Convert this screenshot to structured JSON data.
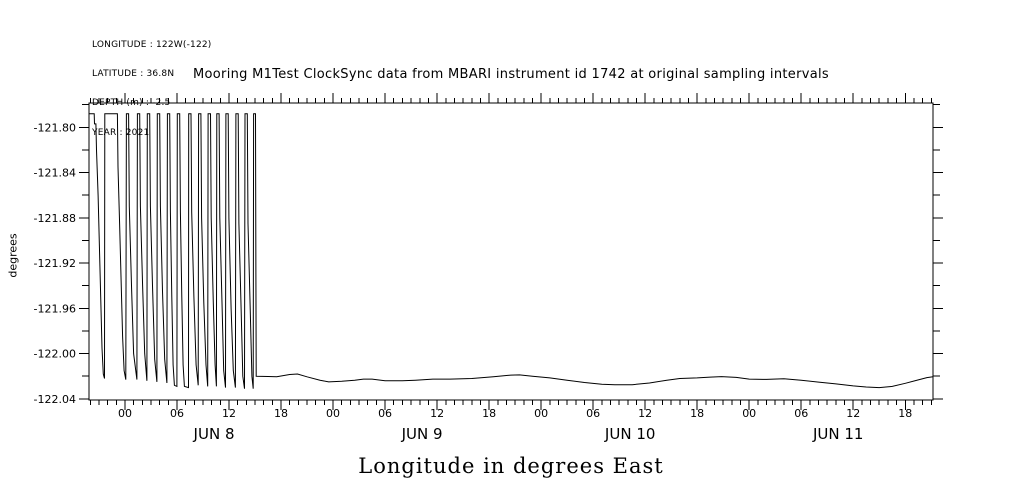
{
  "window": {
    "background": "#ffffff",
    "foreground": "#000000"
  },
  "header": {
    "info_lines": [
      "LONGITUDE : 122W(-122)",
      "LATITUDE : 36.8N",
      "DEPTH (m) : -2.5",
      "YEAR : 2021"
    ]
  },
  "chart_data": {
    "type": "line",
    "title": "Mooring M1Test ClockSync data from MBARI instrument id 1742 at original sampling intervals",
    "xlabel": "Longitude in degrees East",
    "ylabel": "degrees",
    "grid": false,
    "legend": null,
    "line_color": "#000000",
    "x_axis": {
      "unit": "hours since 2021-06-08 00:00",
      "range": [
        -4.15,
        93.2
      ],
      "minor_tick_interval_hours": 1,
      "major_ticks": [
        {
          "hour": 0,
          "label": "00"
        },
        {
          "hour": 6,
          "label": "06"
        },
        {
          "hour": 12,
          "label": "12"
        },
        {
          "hour": 18,
          "label": "18"
        },
        {
          "hour": 24,
          "label": "00"
        },
        {
          "hour": 30,
          "label": "06"
        },
        {
          "hour": 36,
          "label": "12"
        },
        {
          "hour": 42,
          "label": "18"
        },
        {
          "hour": 48,
          "label": "00"
        },
        {
          "hour": 54,
          "label": "06"
        },
        {
          "hour": 60,
          "label": "12"
        },
        {
          "hour": 66,
          "label": "18"
        },
        {
          "hour": 72,
          "label": "00"
        },
        {
          "hour": 78,
          "label": "06"
        },
        {
          "hour": 84,
          "label": "12"
        },
        {
          "hour": 90,
          "label": "18"
        }
      ],
      "day_labels": [
        {
          "hour": 12,
          "label": "JUN  8"
        },
        {
          "hour": 36,
          "label": "JUN  9"
        },
        {
          "hour": 60,
          "label": "JUN 10"
        },
        {
          "hour": 84,
          "label": "JUN 11"
        }
      ]
    },
    "y_axis": {
      "range": [
        -122.041,
        -121.7785
      ],
      "minor_tick_interval": 0.02,
      "major_ticks": [
        {
          "value": -121.8,
          "label": "-121.80"
        },
        {
          "value": -121.84,
          "label": "-121.84"
        },
        {
          "value": -121.88,
          "label": "-121.88"
        },
        {
          "value": -121.92,
          "label": "-121.92"
        },
        {
          "value": -121.96,
          "label": "-121.96"
        },
        {
          "value": -122.0,
          "label": "-122.00"
        },
        {
          "value": -122.04,
          "label": "-122.04"
        }
      ]
    },
    "series": [
      {
        "name": "longitude",
        "color": "#000000",
        "points": [
          [
            -4.15,
            -121.788
          ],
          [
            -3.55,
            -121.788
          ],
          [
            -3.52,
            -121.797
          ],
          [
            -3.35,
            -121.797
          ],
          [
            -3.28,
            -121.82
          ],
          [
            -3.1,
            -121.86
          ],
          [
            -2.95,
            -121.905
          ],
          [
            -2.8,
            -121.95
          ],
          [
            -2.65,
            -121.995
          ],
          [
            -2.5,
            -122.018
          ],
          [
            -2.36,
            -122.022
          ],
          [
            -2.33,
            -121.788
          ],
          [
            -0.88,
            -121.788
          ],
          [
            -0.8,
            -121.835
          ],
          [
            -0.62,
            -121.885
          ],
          [
            -0.45,
            -121.935
          ],
          [
            -0.28,
            -121.985
          ],
          [
            -0.1,
            -122.015
          ],
          [
            0.1,
            -122.023
          ],
          [
            0.16,
            -121.788
          ],
          [
            0.42,
            -121.788
          ],
          [
            0.5,
            -121.87
          ],
          [
            0.75,
            -121.94
          ],
          [
            1.0,
            -122.0
          ],
          [
            1.38,
            -122.023
          ],
          [
            1.43,
            -121.788
          ],
          [
            1.7,
            -121.788
          ],
          [
            1.78,
            -121.87
          ],
          [
            2.03,
            -121.94
          ],
          [
            2.28,
            -122.0
          ],
          [
            2.53,
            -122.024
          ],
          [
            2.58,
            -121.788
          ],
          [
            2.85,
            -121.788
          ],
          [
            2.93,
            -121.87
          ],
          [
            3.18,
            -121.94
          ],
          [
            3.43,
            -122.005
          ],
          [
            3.68,
            -122.025
          ],
          [
            3.73,
            -121.788
          ],
          [
            4.0,
            -121.788
          ],
          [
            4.08,
            -121.87
          ],
          [
            4.33,
            -121.945
          ],
          [
            4.58,
            -122.005
          ],
          [
            4.83,
            -122.026
          ],
          [
            4.89,
            -121.788
          ],
          [
            5.16,
            -121.788
          ],
          [
            5.24,
            -121.875
          ],
          [
            5.4,
            -121.95
          ],
          [
            5.55,
            -122.01
          ],
          [
            5.7,
            -122.028
          ],
          [
            5.99,
            -122.029
          ],
          [
            6.04,
            -121.788
          ],
          [
            6.31,
            -121.788
          ],
          [
            6.39,
            -121.875
          ],
          [
            6.55,
            -121.95
          ],
          [
            6.7,
            -122.01
          ],
          [
            6.85,
            -122.029
          ],
          [
            7.33,
            -122.03
          ],
          [
            7.35,
            -121.788
          ],
          [
            7.62,
            -121.788
          ],
          [
            7.7,
            -121.875
          ],
          [
            7.95,
            -121.95
          ],
          [
            8.2,
            -122.01
          ],
          [
            8.44,
            -122.028
          ],
          [
            8.49,
            -121.788
          ],
          [
            8.76,
            -121.788
          ],
          [
            8.84,
            -121.88
          ],
          [
            9.09,
            -121.955
          ],
          [
            9.34,
            -122.01
          ],
          [
            9.54,
            -122.029
          ],
          [
            9.59,
            -121.788
          ],
          [
            9.86,
            -121.788
          ],
          [
            9.94,
            -121.88
          ],
          [
            10.19,
            -121.955
          ],
          [
            10.39,
            -122.01
          ],
          [
            10.54,
            -122.029
          ],
          [
            10.59,
            -121.788
          ],
          [
            10.86,
            -121.788
          ],
          [
            10.94,
            -121.88
          ],
          [
            11.19,
            -121.955
          ],
          [
            11.39,
            -122.015
          ],
          [
            11.59,
            -122.03
          ],
          [
            11.64,
            -121.788
          ],
          [
            11.91,
            -121.788
          ],
          [
            11.99,
            -121.88
          ],
          [
            12.24,
            -121.96
          ],
          [
            12.49,
            -122.015
          ],
          [
            12.74,
            -122.03
          ],
          [
            12.79,
            -121.788
          ],
          [
            13.06,
            -121.788
          ],
          [
            13.14,
            -121.885
          ],
          [
            13.39,
            -121.96
          ],
          [
            13.59,
            -122.02
          ],
          [
            13.79,
            -122.031
          ],
          [
            13.84,
            -121.788
          ],
          [
            14.11,
            -121.788
          ],
          [
            14.19,
            -121.885
          ],
          [
            14.44,
            -121.96
          ],
          [
            14.64,
            -122.02
          ],
          [
            14.79,
            -122.031
          ],
          [
            14.84,
            -121.788
          ],
          [
            15.06,
            -121.788
          ],
          [
            15.1,
            -121.93
          ],
          [
            15.13,
            -122.02
          ],
          [
            16.5,
            -122.0202
          ],
          [
            17.5,
            -122.0205
          ],
          [
            19.0,
            -122.0185
          ],
          [
            19.9,
            -122.018
          ],
          [
            21.0,
            -122.0205
          ],
          [
            22.5,
            -122.0235
          ],
          [
            23.5,
            -122.025
          ],
          [
            25.0,
            -122.0245
          ],
          [
            26.5,
            -122.0235
          ],
          [
            27.5,
            -122.0225
          ],
          [
            28.5,
            -122.0225
          ],
          [
            30.0,
            -122.024
          ],
          [
            32.0,
            -122.024
          ],
          [
            33.5,
            -122.0235
          ],
          [
            35.5,
            -122.0225
          ],
          [
            37.5,
            -122.0225
          ],
          [
            40.0,
            -122.022
          ],
          [
            42.5,
            -122.0205
          ],
          [
            44.5,
            -122.019
          ],
          [
            45.5,
            -122.0188
          ],
          [
            47.0,
            -122.02
          ],
          [
            49.0,
            -122.0215
          ],
          [
            51.0,
            -122.0235
          ],
          [
            53.0,
            -122.0255
          ],
          [
            55.0,
            -122.027
          ],
          [
            56.5,
            -122.0275
          ],
          [
            58.5,
            -122.0275
          ],
          [
            60.5,
            -122.026
          ],
          [
            62.5,
            -122.0235
          ],
          [
            64.0,
            -122.022
          ],
          [
            66.0,
            -122.0215
          ],
          [
            67.5,
            -122.0208
          ],
          [
            68.8,
            -122.0203
          ],
          [
            70.5,
            -122.021
          ],
          [
            72.0,
            -122.0225
          ],
          [
            74.0,
            -122.0228
          ],
          [
            76.0,
            -122.0222
          ],
          [
            78.0,
            -122.0235
          ],
          [
            80.0,
            -122.0252
          ],
          [
            82.0,
            -122.0268
          ],
          [
            84.0,
            -122.0285
          ],
          [
            85.5,
            -122.0295
          ],
          [
            87.0,
            -122.03
          ],
          [
            88.5,
            -122.029
          ],
          [
            90.0,
            -122.0262
          ],
          [
            91.5,
            -122.0232
          ],
          [
            92.5,
            -122.0212
          ],
          [
            93.2,
            -122.0205
          ]
        ]
      }
    ]
  }
}
